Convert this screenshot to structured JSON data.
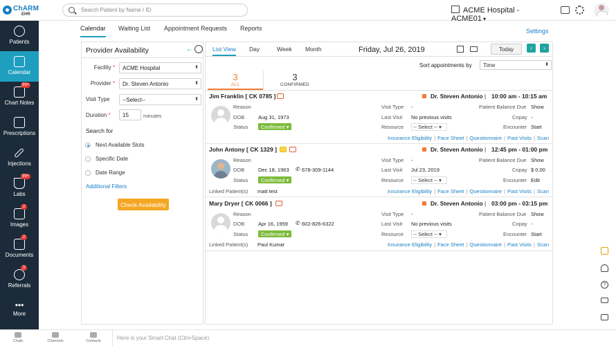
{
  "logo": {
    "primary": "ChARM",
    "secondary": "EHR"
  },
  "search": {
    "placeholder": "Search Patient by Name / ID"
  },
  "header": {
    "hospital": "ACME Hospital - ACME01"
  },
  "sidebar": {
    "items": [
      {
        "label": "Patients",
        "icon": "patients-icon"
      },
      {
        "label": "Calendar",
        "icon": "calendar-icon",
        "active": true
      },
      {
        "label": "Chart Notes",
        "icon": "chart-notes-icon",
        "badge": "99+"
      },
      {
        "label": "Prescriptions",
        "icon": "prescriptions-icon"
      },
      {
        "label": "Injections",
        "icon": "injections-icon"
      },
      {
        "label": "Labs",
        "icon": "labs-icon",
        "badge": "99+"
      },
      {
        "label": "Images",
        "icon": "images-icon",
        "badge": "2"
      },
      {
        "label": "Documents",
        "icon": "documents-icon",
        "badge": "2"
      },
      {
        "label": "Referrals",
        "icon": "referrals-icon",
        "badge": "3"
      },
      {
        "label": "More",
        "icon": "more-icon"
      }
    ]
  },
  "subnav": {
    "tabs": [
      "Calendar",
      "Waiting List",
      "Appointment Requests",
      "Reports"
    ],
    "settings": "Settings"
  },
  "provider_panel": {
    "title": "Provider Availability",
    "facility_label": "Facility",
    "facility_value": "ACME Hospital",
    "provider_label": "Provider",
    "provider_value": "Dr. Steven Antonio",
    "visit_type_label": "Visit Type",
    "visit_type_value": "--Select--",
    "duration_label": "Duration",
    "duration_value": "15",
    "duration_unit": "minutes",
    "search_for": "Search for",
    "options": [
      "Next Available Slots",
      "Specific Date",
      "Date Range"
    ],
    "additional_filters": "Additional Filters",
    "check_button": "Check Availability"
  },
  "list_panel": {
    "views": [
      "List View",
      "Day",
      "Week",
      "Month"
    ],
    "date": "Friday, Jul 26, 2019",
    "today": "Today",
    "sort_label": "Sort appointments by",
    "sort_value": "Time",
    "counts": [
      {
        "n": "3",
        "label": "ALL"
      },
      {
        "n": "3",
        "label": "CONFIRMED"
      }
    ]
  },
  "appointments": [
    {
      "name": "Jim Franklin",
      "id": "[ CK 0785 ]",
      "reason_label": "Reason",
      "dob_label": "DOB",
      "dob": "Aug 31, 1973",
      "phone": "",
      "status_label": "Status",
      "status": "Confirmed",
      "linked_label": "",
      "linked": "",
      "visit_type_label": "Visit Type",
      "visit_type": "-",
      "last_visit_label": "Last Visit",
      "last_visit": "No previous visits",
      "resource_label": "Resource",
      "resource": "-- Select --",
      "provider": "Dr. Steven Antonio",
      "time": "10:00 am - 10:15 am",
      "balance_label": "Patient Balance Due",
      "balance": "Show",
      "copay_label": "Copay",
      "copay": "-",
      "encounter_label": "Encounter",
      "encounter": "Start"
    },
    {
      "name": "John Antony",
      "id": "[ CK 1329 ]",
      "reason_label": "Reason",
      "dob_label": "DOB",
      "dob": "Dec 18, 1963",
      "phone": "678-309-1144",
      "status_label": "Status",
      "status": "Confirmed",
      "linked_label": "Linked Patient(s)",
      "linked": "matt test",
      "visit_type_label": "Visit Type",
      "visit_type": "-",
      "last_visit_label": "Last Visit",
      "last_visit": "Jul 23, 2019",
      "resource_label": "Resource",
      "resource": "-- Select --",
      "provider": "Dr. Steven Antonio",
      "time": "12:45 pm - 01:00 pm",
      "balance_label": "Patient Balance Due",
      "balance": "Show",
      "copay_label": "Copay",
      "copay": "$ 0.00",
      "encounter_label": "Encounter",
      "encounter": "Edit"
    },
    {
      "name": "Mary Dryer",
      "id": "[ CK 0066 ]",
      "reason_label": "Reason",
      "dob_label": "DOB",
      "dob": "Apr 16, 1959",
      "phone": "602-826-6322",
      "status_label": "Status",
      "status": "Confirmed",
      "linked_label": "Linked Patient(s)",
      "linked": "Paul Kumar",
      "visit_type_label": "Visit Type",
      "visit_type": "-",
      "last_visit_label": "Last Visit",
      "last_visit": "No previous visits",
      "resource_label": "Resource",
      "resource": "-- Select --",
      "provider": "Dr. Steven Antonio",
      "time": "03:00 pm - 03:15 pm",
      "balance_label": "Patient Balance Due",
      "balance": "Show",
      "copay_label": "Copay",
      "copay": "-",
      "encounter_label": "Encounter",
      "encounter": "Start"
    }
  ],
  "appt_links": [
    "Insurance Eligibility",
    "Face Sheet",
    "Questionnaire",
    "Past Visits",
    "Scan"
  ],
  "bottom": {
    "items": [
      "Chats",
      "Channels",
      "Contacts"
    ],
    "smart_chat_placeholder": "Here is your Smart Chat (Ctrl+Space)"
  },
  "colors": {
    "sidebar": "#1c2b39",
    "active": "#1f9fbf",
    "link": "#1a7fc4",
    "confirmed": "#7cbb3a",
    "cta": "#f5a623"
  }
}
